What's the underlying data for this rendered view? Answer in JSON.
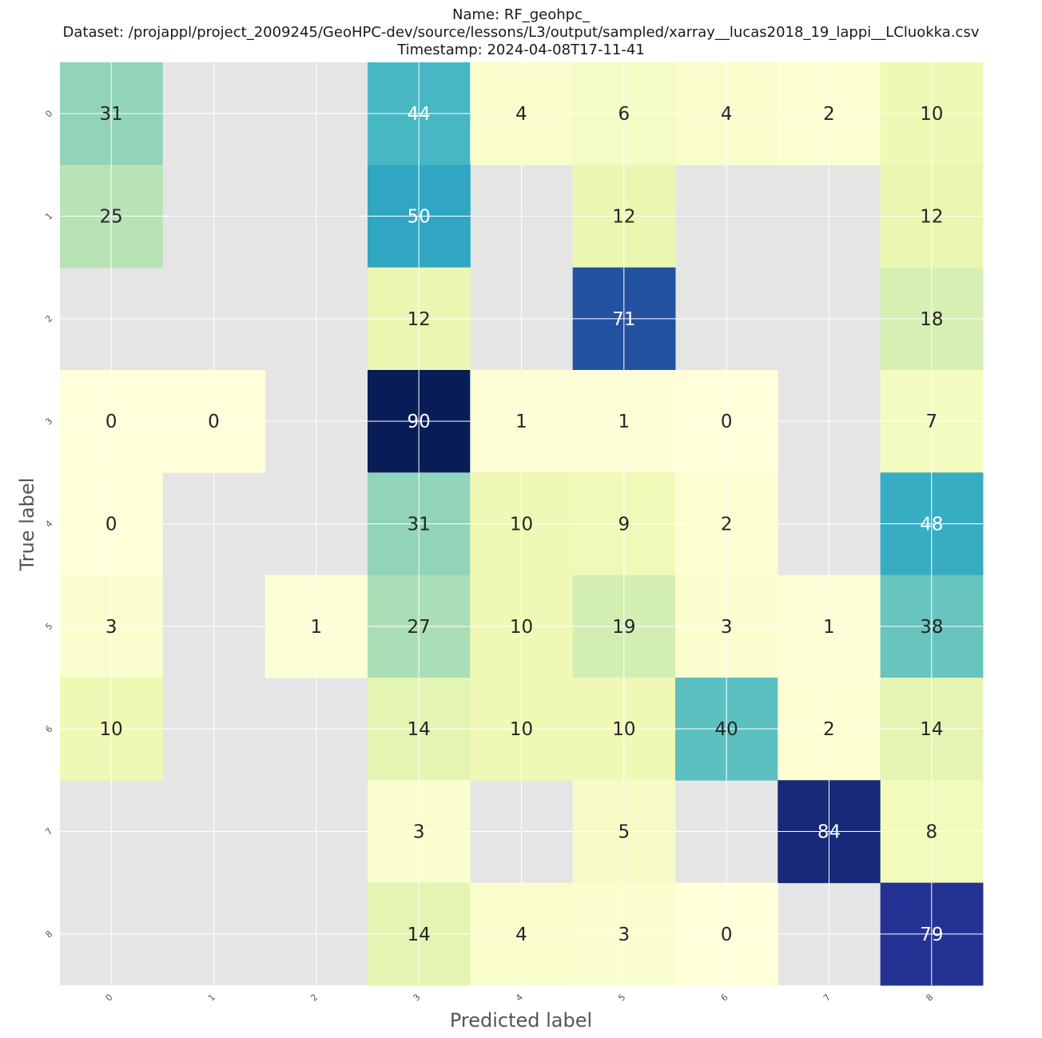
{
  "chart_data": {
    "type": "heatmap",
    "title_lines": [
      "Name: RF_geohpc_",
      "Dataset: /projappl/project_2009245/GeoHPC-dev/source/lessons/L3/output/sampled/xarray__lucas2018_19_lappi__LCluokka.csv",
      "Timestamp: 2024-04-08T17-11-41"
    ],
    "xlabel": "Predicted label",
    "ylabel": "True label",
    "x_categories": [
      "0",
      "1",
      "2",
      "3",
      "4",
      "5",
      "6",
      "7",
      "8"
    ],
    "y_categories": [
      "0",
      "1",
      "2",
      "3",
      "4",
      "5",
      "6",
      "7",
      "8"
    ],
    "values": [
      [
        31,
        null,
        null,
        44,
        4,
        6,
        4,
        2,
        10
      ],
      [
        25,
        null,
        null,
        50,
        null,
        12,
        null,
        null,
        12
      ],
      [
        null,
        null,
        null,
        12,
        null,
        71,
        null,
        null,
        18
      ],
      [
        0,
        0,
        null,
        90,
        1,
        1,
        0,
        null,
        7
      ],
      [
        0,
        null,
        null,
        31,
        10,
        9,
        2,
        null,
        48
      ],
      [
        3,
        null,
        1,
        27,
        10,
        19,
        3,
        1,
        38
      ],
      [
        10,
        null,
        null,
        14,
        10,
        10,
        40,
        2,
        14
      ],
      [
        null,
        null,
        null,
        3,
        null,
        5,
        null,
        84,
        8
      ],
      [
        null,
        null,
        null,
        14,
        4,
        3,
        0,
        null,
        79
      ]
    ],
    "colormap": "YlGnBu",
    "color_range": [
      0,
      90
    ],
    "empty_cell_color": "#e5e5e5",
    "grid": true,
    "colorbar": false
  }
}
